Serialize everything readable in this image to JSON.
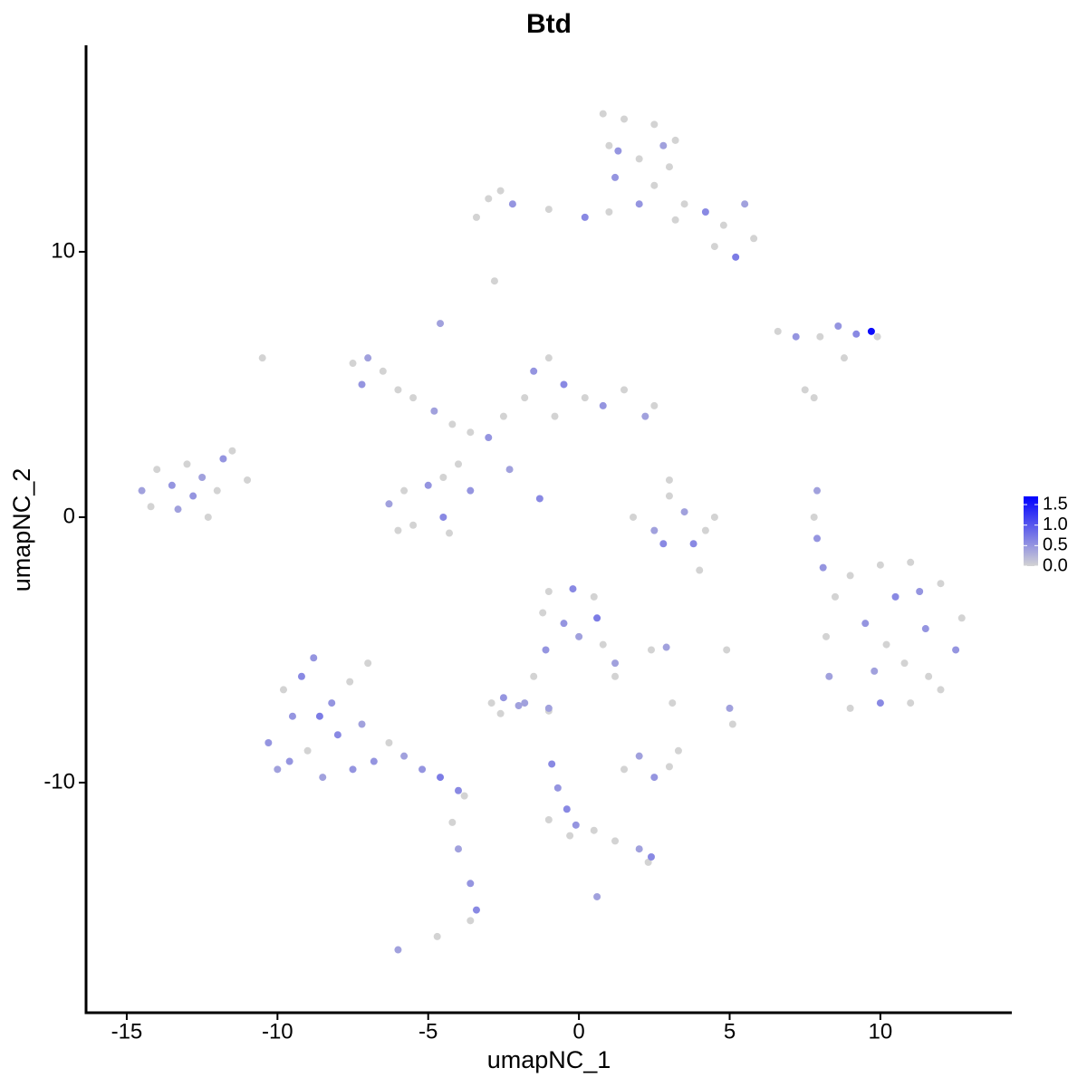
{
  "chart_data": {
    "type": "scatter",
    "title": "Btd",
    "x_label": "umapNC_1",
    "y_label": "umapNC_2",
    "x": [
      0.8,
      1.5,
      2.5,
      3.2,
      1.0,
      2.0,
      3.0,
      1.2,
      2.5,
      3.5,
      4.2,
      4.8,
      5.5,
      5.8,
      5.2,
      4.5,
      3.2,
      2.0,
      1.0,
      0.2,
      -1.0,
      -2.2,
      -3.0,
      -3.4,
      -2.6,
      -2.8,
      1.3,
      2.8,
      -7.5,
      -7.0,
      -6.5,
      -7.2,
      -6.0,
      -5.5,
      -4.8,
      -4.2,
      -3.6,
      -3.0,
      -2.5,
      -1.8,
      -1.5,
      -1.0,
      -0.5,
      0.2,
      0.8,
      1.5,
      2.2,
      2.5,
      -0.8,
      -4.6,
      -4.0,
      -4.5,
      -5.0,
      -5.8,
      -6.3,
      -5.5,
      -4.5,
      -4.3,
      -3.6,
      -2.3,
      -1.3,
      -6.0,
      -14.5,
      -14.0,
      -13.5,
      -13.0,
      -12.5,
      -12.0,
      -11.8,
      -11.5,
      -14.2,
      -13.3,
      -12.3,
      -11.0,
      -12.8,
      -10.5,
      -10.3,
      -10.0,
      -9.5,
      -9.2,
      -9.0,
      -8.8,
      -8.5,
      -8.2,
      -8.0,
      -7.6,
      -7.5,
      -7.2,
      -7.0,
      -6.8,
      -6.3,
      -5.8,
      -5.2,
      -4.6,
      -4.0,
      -3.8,
      -4.2,
      -4.0,
      -3.6,
      -3.4,
      -3.6,
      -6.0,
      -4.7,
      -9.8,
      -9.6,
      -8.6,
      8.5,
      9.0,
      10.0,
      11.0,
      12.0,
      12.7,
      12.5,
      12.0,
      11.0,
      10.0,
      9.0,
      8.3,
      8.2,
      9.5,
      10.5,
      11.5,
      10.8,
      9.8,
      11.6,
      10.2,
      11.3,
      8.1,
      7.9,
      7.8,
      7.9,
      -1.0,
      -0.2,
      0.5,
      0.6,
      -0.5,
      -1.2,
      0.0,
      0.8,
      1.2,
      1.2,
      -1.1,
      -1.5,
      -1.8,
      -2.5,
      -2.9,
      -2.6,
      -1.0,
      1.8,
      2.5,
      3.0,
      3.5,
      4.2,
      4.5,
      2.8,
      3.8,
      3.0,
      4.0,
      2.4,
      2.9,
      6.6,
      7.2,
      8.0,
      8.6,
      9.2,
      9.7,
      9.9,
      8.8,
      7.5,
      7.8,
      1.5,
      2.0,
      2.5,
      3.0,
      3.3,
      3.1,
      5.0,
      5.1,
      4.9,
      -0.9,
      -0.7,
      -0.4,
      -0.3,
      -0.1,
      0.5,
      1.2,
      2.0,
      2.4,
      2.3,
      -1.0,
      0.6,
      -2.0,
      -1.0
    ],
    "y": [
      15.2,
      15.0,
      14.8,
      14.2,
      14.0,
      13.5,
      13.2,
      12.8,
      12.5,
      11.8,
      11.5,
      11.0,
      11.8,
      10.5,
      9.8,
      10.2,
      11.2,
      11.8,
      11.5,
      11.3,
      11.6,
      11.8,
      12.0,
      11.3,
      12.3,
      8.9,
      13.8,
      14.0,
      5.8,
      6.0,
      5.5,
      5.0,
      4.8,
      4.5,
      4.0,
      3.5,
      3.2,
      3.0,
      3.8,
      4.5,
      5.5,
      6.0,
      5.0,
      4.5,
      4.2,
      4.8,
      3.8,
      4.2,
      3.8,
      7.3,
      2.0,
      1.5,
      1.2,
      1.0,
      0.5,
      -0.3,
      0,
      -0.6,
      1.0,
      1.8,
      0.7,
      -0.5,
      1.0,
      1.8,
      1.2,
      2.0,
      1.5,
      1.0,
      2.2,
      2.5,
      0.4,
      0.3,
      0.0,
      1.4,
      0.8,
      6.0,
      -8.5,
      -9.5,
      -7.5,
      -6.0,
      -8.8,
      -5.3,
      -9.8,
      -7.0,
      -8.2,
      -6.2,
      -9.5,
      -7.8,
      -5.5,
      -9.2,
      -8.5,
      -9.0,
      -9.5,
      -9.8,
      -10.3,
      -10.5,
      -11.5,
      -12.5,
      -13.8,
      -14.8,
      -15.2,
      -16.3,
      -15.8,
      -6.5,
      -9.2,
      -7.5,
      -3.0,
      -2.2,
      -1.8,
      -1.7,
      -2.5,
      -3.8,
      -5.0,
      -6.5,
      -7.0,
      -7.0,
      -7.2,
      -6.0,
      -4.5,
      -4.0,
      -3.0,
      -4.2,
      -5.5,
      -5.8,
      -6.0,
      -4.8,
      -2.8,
      -1.9,
      1.0,
      0,
      -0.8,
      -2.8,
      -2.7,
      -3.0,
      -3.8,
      -4.0,
      -3.6,
      -4.5,
      -4.8,
      -5.5,
      -6.0,
      -5.0,
      -6.0,
      -7.0,
      -6.8,
      -7.0,
      -7.4,
      -7.2,
      0.0,
      -0.5,
      0.8,
      0.2,
      -0.5,
      0.0,
      -1.0,
      -1.0,
      1.4,
      -2.0,
      -5.0,
      -4.9,
      7.0,
      6.8,
      6.8,
      7.2,
      6.9,
      7.0,
      6.8,
      6.0,
      4.8,
      4.5,
      -9.5,
      -9.0,
      -9.8,
      -9.4,
      -8.8,
      -7.0,
      -7.2,
      -7.8,
      -5.0,
      -9.3,
      -10.2,
      -11.0,
      -12.0,
      -11.6,
      -11.8,
      -12.2,
      -12.5,
      -12.8,
      -13.0,
      -11.4,
      -14.3,
      -7.1,
      -7.3
    ],
    "values": [
      0,
      0,
      0,
      0,
      0,
      0,
      0,
      0.5,
      0,
      0,
      0.6,
      0,
      0.4,
      0,
      0.7,
      0,
      0,
      0.5,
      0,
      0.6,
      0,
      0.5,
      0,
      0,
      0,
      0,
      0.5,
      0.4,
      0,
      0.4,
      0,
      0.5,
      0,
      0,
      0.4,
      0,
      0,
      0.5,
      0,
      0,
      0.5,
      0,
      0.6,
      0,
      0.5,
      0,
      0.4,
      0,
      0,
      0.4,
      0,
      0,
      0.5,
      0,
      0.4,
      0,
      0.6,
      0,
      0.5,
      0.4,
      0.6,
      0,
      0.4,
      0,
      0.5,
      0,
      0.4,
      0,
      0.5,
      0,
      0,
      0.4,
      0,
      0,
      0.5,
      0,
      0.5,
      0.4,
      0.5,
      0.6,
      0,
      0.5,
      0.4,
      0.5,
      0.6,
      0,
      0.5,
      0.4,
      0,
      0.5,
      0,
      0.4,
      0.5,
      0.7,
      0.6,
      0,
      0,
      0.4,
      0.5,
      0.6,
      0,
      0.4,
      0,
      0,
      0.5,
      0.7,
      0,
      0,
      0,
      0,
      0,
      0,
      0.5,
      0,
      0,
      0.6,
      0,
      0.4,
      0,
      0.5,
      0.6,
      0.5,
      0,
      0.4,
      0,
      0,
      0.5,
      0.5,
      0.4,
      0,
      0.5,
      0,
      0.6,
      0,
      0.7,
      0.5,
      0,
      0.4,
      0,
      0.4,
      0,
      0.5,
      0,
      0.4,
      0.5,
      0,
      0,
      0.4,
      0,
      0.4,
      0,
      0.4,
      0,
      0,
      0.6,
      0.6,
      0,
      0,
      0,
      0.4,
      0,
      0.5,
      0,
      0.5,
      0.6,
      1.6,
      0,
      0,
      0,
      0,
      0,
      0.4,
      0.5,
      0,
      0,
      0,
      0.4,
      0,
      0,
      0.6,
      0.5,
      0.6,
      0,
      0.5,
      0,
      0,
      0.4,
      0.6,
      0,
      0,
      0.4,
      0.4,
      0
    ],
    "colors": [
      "#d3d3d3",
      "#0000ff"
    ],
    "clim": [
      0,
      1.7
    ],
    "colorbar_ticks": [
      {
        "value": 0,
        "label": "0.0"
      },
      {
        "value": 0.5,
        "label": "0.5"
      },
      {
        "value": 1,
        "label": "1.0"
      },
      {
        "value": 1.5,
        "label": "1.5"
      }
    ],
    "xlim": [
      -16.35,
      14.36
    ],
    "ylim": [
      -18.67,
      17.78
    ],
    "xticks": [
      -15,
      -10,
      -5,
      0,
      5,
      10
    ],
    "yticks": [
      -10,
      0,
      10
    ],
    "grid": false
  }
}
